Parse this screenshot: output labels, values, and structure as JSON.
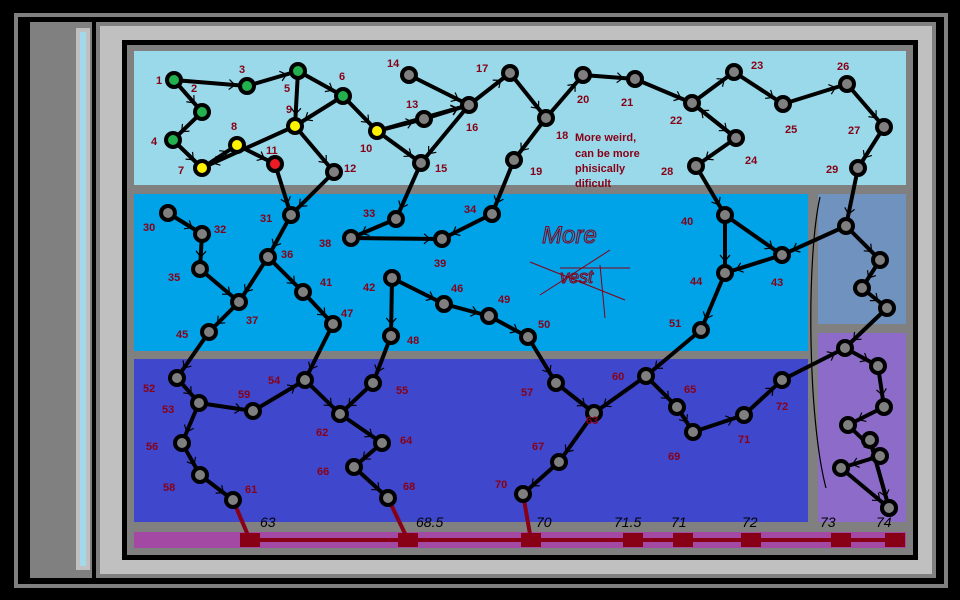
{
  "colors": {
    "frame_dark": "#000000",
    "frame_gray": "#808080",
    "frame_light": "#c0c0c0",
    "sidebar_stripe": "#a6d8ec",
    "zone_top": "#99d9ea",
    "zone_mid": "#00a2e8",
    "zone_bottom": "#3f48cc",
    "zone_right_a": "#7092be",
    "zone_right_b": "#8c6cc8",
    "track": "#a349a4",
    "track_marker": "#880015",
    "label": "#880015",
    "node_fill": "#7f7f7f",
    "node_ring": "#000000",
    "state_green": "#22b14c",
    "state_yellow": "#fff200",
    "state_red": "#ed1c24"
  },
  "annotations": {
    "note_line1": "More weird,",
    "note_line2": "can be more",
    "note_line3": "phisically",
    "note_line4": "dificult",
    "scribble_more": "More",
    "scribble_vest": "vest"
  },
  "track_labels": [
    "63",
    "68.5",
    "70",
    "71.5",
    "71",
    "72",
    "73",
    "74"
  ],
  "nodes": [
    {
      "id": "1",
      "state": "green"
    },
    {
      "id": "2",
      "state": "green"
    },
    {
      "id": "3",
      "state": "green"
    },
    {
      "id": "4",
      "state": "green"
    },
    {
      "id": "5",
      "state": "green"
    },
    {
      "id": "6",
      "state": "green"
    },
    {
      "id": "7",
      "state": "yellow"
    },
    {
      "id": "8",
      "state": "yellow"
    },
    {
      "id": "9",
      "state": "yellow"
    },
    {
      "id": "10",
      "state": "yellow"
    },
    {
      "id": "11",
      "state": "red"
    },
    {
      "id": "12",
      "state": "gray"
    },
    {
      "id": "13",
      "state": "gray"
    },
    {
      "id": "14",
      "state": "gray"
    },
    {
      "id": "15",
      "state": "gray"
    },
    {
      "id": "16",
      "state": "gray"
    },
    {
      "id": "17",
      "state": "gray"
    },
    {
      "id": "18",
      "state": "gray"
    },
    {
      "id": "19",
      "state": "gray"
    },
    {
      "id": "20",
      "state": "gray"
    },
    {
      "id": "21",
      "state": "gray"
    },
    {
      "id": "22",
      "state": "gray"
    },
    {
      "id": "23",
      "state": "gray"
    },
    {
      "id": "24",
      "state": "gray"
    },
    {
      "id": "25",
      "state": "gray"
    },
    {
      "id": "26",
      "state": "gray"
    },
    {
      "id": "27",
      "state": "gray"
    },
    {
      "id": "28",
      "state": "gray"
    },
    {
      "id": "29",
      "state": "gray"
    },
    {
      "id": "30",
      "state": "gray"
    },
    {
      "id": "31",
      "state": "gray"
    },
    {
      "id": "32",
      "state": "gray"
    },
    {
      "id": "33",
      "state": "gray"
    },
    {
      "id": "34",
      "state": "gray"
    },
    {
      "id": "35",
      "state": "gray"
    },
    {
      "id": "36",
      "state": "gray"
    },
    {
      "id": "37",
      "state": "gray"
    },
    {
      "id": "38",
      "state": "gray"
    },
    {
      "id": "39",
      "state": "gray"
    },
    {
      "id": "40",
      "state": "gray"
    },
    {
      "id": "41",
      "state": "gray"
    },
    {
      "id": "42",
      "state": "gray"
    },
    {
      "id": "43",
      "state": "gray"
    },
    {
      "id": "44",
      "state": "gray"
    },
    {
      "id": "45",
      "state": "gray"
    },
    {
      "id": "46",
      "state": "gray"
    },
    {
      "id": "47",
      "state": "gray"
    },
    {
      "id": "48",
      "state": "gray"
    },
    {
      "id": "49",
      "state": "gray"
    },
    {
      "id": "50",
      "state": "gray"
    },
    {
      "id": "51",
      "state": "gray"
    },
    {
      "id": "52",
      "state": "gray"
    },
    {
      "id": "53",
      "state": "gray"
    },
    {
      "id": "54",
      "state": "gray"
    },
    {
      "id": "55",
      "state": "gray"
    },
    {
      "id": "56",
      "state": "gray"
    },
    {
      "id": "57",
      "state": "gray"
    },
    {
      "id": "58",
      "state": "gray"
    },
    {
      "id": "59",
      "state": "gray"
    },
    {
      "id": "60",
      "state": "gray"
    },
    {
      "id": "61",
      "state": "gray"
    },
    {
      "id": "62",
      "state": "gray"
    },
    {
      "id": "63",
      "state": "gray"
    },
    {
      "id": "64",
      "state": "gray"
    },
    {
      "id": "65",
      "state": "gray"
    },
    {
      "id": "66",
      "state": "gray"
    },
    {
      "id": "67",
      "state": "gray"
    },
    {
      "id": "68",
      "state": "gray"
    },
    {
      "id": "69",
      "state": "gray"
    },
    {
      "id": "70",
      "state": "gray"
    },
    {
      "id": "71",
      "state": "gray"
    },
    {
      "id": "72",
      "state": "gray"
    },
    {
      "id": "r1",
      "state": "gray"
    },
    {
      "id": "r2",
      "state": "gray"
    },
    {
      "id": "r3",
      "state": "gray"
    },
    {
      "id": "r4",
      "state": "gray"
    },
    {
      "id": "r5",
      "state": "gray"
    },
    {
      "id": "r6",
      "state": "gray"
    },
    {
      "id": "r7",
      "state": "gray"
    },
    {
      "id": "r8",
      "state": "gray"
    },
    {
      "id": "r9",
      "state": "gray"
    },
    {
      "id": "r10",
      "state": "gray"
    },
    {
      "id": "r11",
      "state": "gray"
    },
    {
      "id": "r12",
      "state": "gray"
    },
    {
      "id": "r13",
      "state": "gray"
    }
  ],
  "node_labels": {
    "1": "1",
    "2": "2",
    "3": "3",
    "4": "4",
    "5": "5",
    "6": "6",
    "7": "7",
    "8": "8",
    "9": "9",
    "10": "10",
    "11": "11",
    "12": "12",
    "13": "13",
    "14": "14",
    "15": "15",
    "16": "16",
    "17": "17",
    "18": "18",
    "19": "19",
    "20": "20",
    "21": "21",
    "22": "22",
    "23": "23",
    "24": "24",
    "25": "25",
    "26": "26",
    "27": "27",
    "28": "28",
    "29": "29",
    "30": "30",
    "31": "31",
    "32": "32",
    "33": "33",
    "34": "34",
    "35": "35",
    "36": "36",
    "37": "37",
    "38": "38",
    "39": "39",
    "40": "40",
    "41": "41",
    "42": "42",
    "43": "43",
    "44": "44",
    "45": "45",
    "46": "46",
    "47": "47",
    "48": "48",
    "49": "49",
    "50": "50",
    "51": "51",
    "52": "52",
    "53": "53",
    "54": "54",
    "55": "55",
    "56": "56",
    "57": "57",
    "58": "58",
    "59": "59",
    "60": "60",
    "61": "61",
    "62": "62",
    "63": "63",
    "64": "64",
    "65": "65",
    "66": "66",
    "67": "67",
    "68": "68",
    "69": "69",
    "70": "70",
    "71": "71",
    "72": "72"
  },
  "edges": [
    [
      "1",
      "2"
    ],
    [
      "1",
      "3"
    ],
    [
      "2",
      "4"
    ],
    [
      "3",
      "5"
    ],
    [
      "4",
      "7"
    ],
    [
      "5",
      "6"
    ],
    [
      "5",
      "9"
    ],
    [
      "6",
      "10"
    ],
    [
      "6",
      "9"
    ],
    [
      "7",
      "8"
    ],
    [
      "8",
      "11"
    ],
    [
      "9",
      "7"
    ],
    [
      "9",
      "12"
    ],
    [
      "10",
      "13"
    ],
    [
      "10",
      "15"
    ],
    [
      "10",
      "16"
    ],
    [
      "13",
      "16"
    ],
    [
      "14",
      "16"
    ],
    [
      "16",
      "15"
    ],
    [
      "16",
      "17"
    ],
    [
      "17",
      "18"
    ],
    [
      "18",
      "19"
    ],
    [
      "18",
      "20"
    ],
    [
      "20",
      "21"
    ],
    [
      "21",
      "22"
    ],
    [
      "22",
      "23"
    ],
    [
      "22",
      "24"
    ],
    [
      "23",
      "25"
    ],
    [
      "24",
      "22"
    ],
    [
      "25",
      "26"
    ],
    [
      "26",
      "27"
    ],
    [
      "27",
      "29"
    ],
    [
      "24",
      "28"
    ],
    [
      "28",
      "40"
    ],
    [
      "29",
      "r1"
    ],
    [
      "11",
      "31"
    ],
    [
      "12",
      "31"
    ],
    [
      "15",
      "33"
    ],
    [
      "19",
      "34"
    ],
    [
      "30",
      "32"
    ],
    [
      "32",
      "35"
    ],
    [
      "35",
      "37"
    ],
    [
      "31",
      "36"
    ],
    [
      "36",
      "37"
    ],
    [
      "36",
      "41"
    ],
    [
      "33",
      "38"
    ],
    [
      "38",
      "39"
    ],
    [
      "34",
      "39"
    ],
    [
      "37",
      "45"
    ],
    [
      "41",
      "47"
    ],
    [
      "42",
      "46"
    ],
    [
      "46",
      "49"
    ],
    [
      "49",
      "50"
    ],
    [
      "42",
      "48"
    ],
    [
      "40",
      "43"
    ],
    [
      "40",
      "44"
    ],
    [
      "43",
      "44"
    ],
    [
      "44",
      "51"
    ],
    [
      "45",
      "52"
    ],
    [
      "52",
      "53"
    ],
    [
      "53",
      "59"
    ],
    [
      "59",
      "54"
    ],
    [
      "54",
      "62"
    ],
    [
      "47",
      "54"
    ],
    [
      "48",
      "55"
    ],
    [
      "55",
      "62"
    ],
    [
      "62",
      "64"
    ],
    [
      "64",
      "66"
    ],
    [
      "66",
      "68"
    ],
    [
      "53",
      "56"
    ],
    [
      "56",
      "58"
    ],
    [
      "58",
      "61"
    ],
    [
      "50",
      "57"
    ],
    [
      "57",
      "63"
    ],
    [
      "60",
      "63"
    ],
    [
      "51",
      "60"
    ],
    [
      "60",
      "65"
    ],
    [
      "65",
      "69"
    ],
    [
      "69",
      "71"
    ],
    [
      "71",
      "72"
    ],
    [
      "72",
      "r5"
    ],
    [
      "63",
      "67"
    ],
    [
      "67",
      "70"
    ],
    [
      "r1",
      "43"
    ],
    [
      "r1",
      "r2"
    ],
    [
      "r2",
      "r3"
    ],
    [
      "r3",
      "r4"
    ],
    [
      "r4",
      "r5"
    ],
    [
      "r5",
      "r6"
    ],
    [
      "r6",
      "r7"
    ],
    [
      "r7",
      "r8"
    ],
    [
      "r8",
      "r9"
    ],
    [
      "r9",
      "r10"
    ],
    [
      "r10",
      "r11"
    ],
    [
      "r11",
      "r12"
    ],
    [
      "r12",
      "r13"
    ],
    [
      "30",
      "r0"
    ],
    [
      "r0",
      "r0"
    ]
  ]
}
